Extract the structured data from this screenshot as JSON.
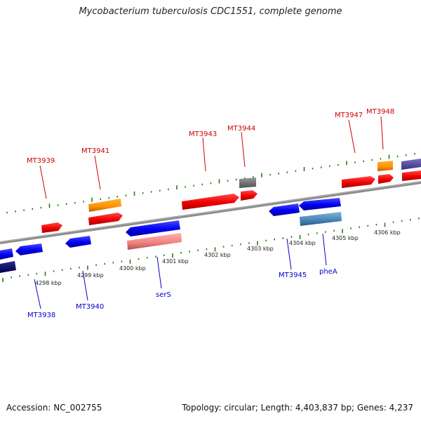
{
  "header": {
    "title": "Mycobacterium tuberculosis CDC1551, complete genome"
  },
  "footer": {
    "accession": "Accession: NC_002755",
    "summary": "Topology: circular; Length: 4,403,837 bp; Genes: 4,237"
  },
  "map": {
    "ruler_labels": [
      "4298 kbp",
      "4299 kbp",
      "4300 kbp",
      "4301 kbp",
      "4302 kbp",
      "4303 kbp",
      "4304 kbp",
      "4305 kbp",
      "4306 kbp"
    ],
    "forward_gene_labels": [
      "MT3939",
      "MT3941",
      "MT3943",
      "MT3944",
      "MT3947",
      "MT3948"
    ],
    "reverse_gene_labels": [
      "MT3938",
      "MT3940",
      "serS",
      "MT3945",
      "pheA"
    ],
    "colors": {
      "forward_label": "#cc0000",
      "reverse_label": "#0000cc",
      "forward_gene": "#ff0000",
      "reverse_gene": "#0000ee",
      "ruler_tick": "#2a7a1a",
      "backbone": "#888888"
    }
  }
}
